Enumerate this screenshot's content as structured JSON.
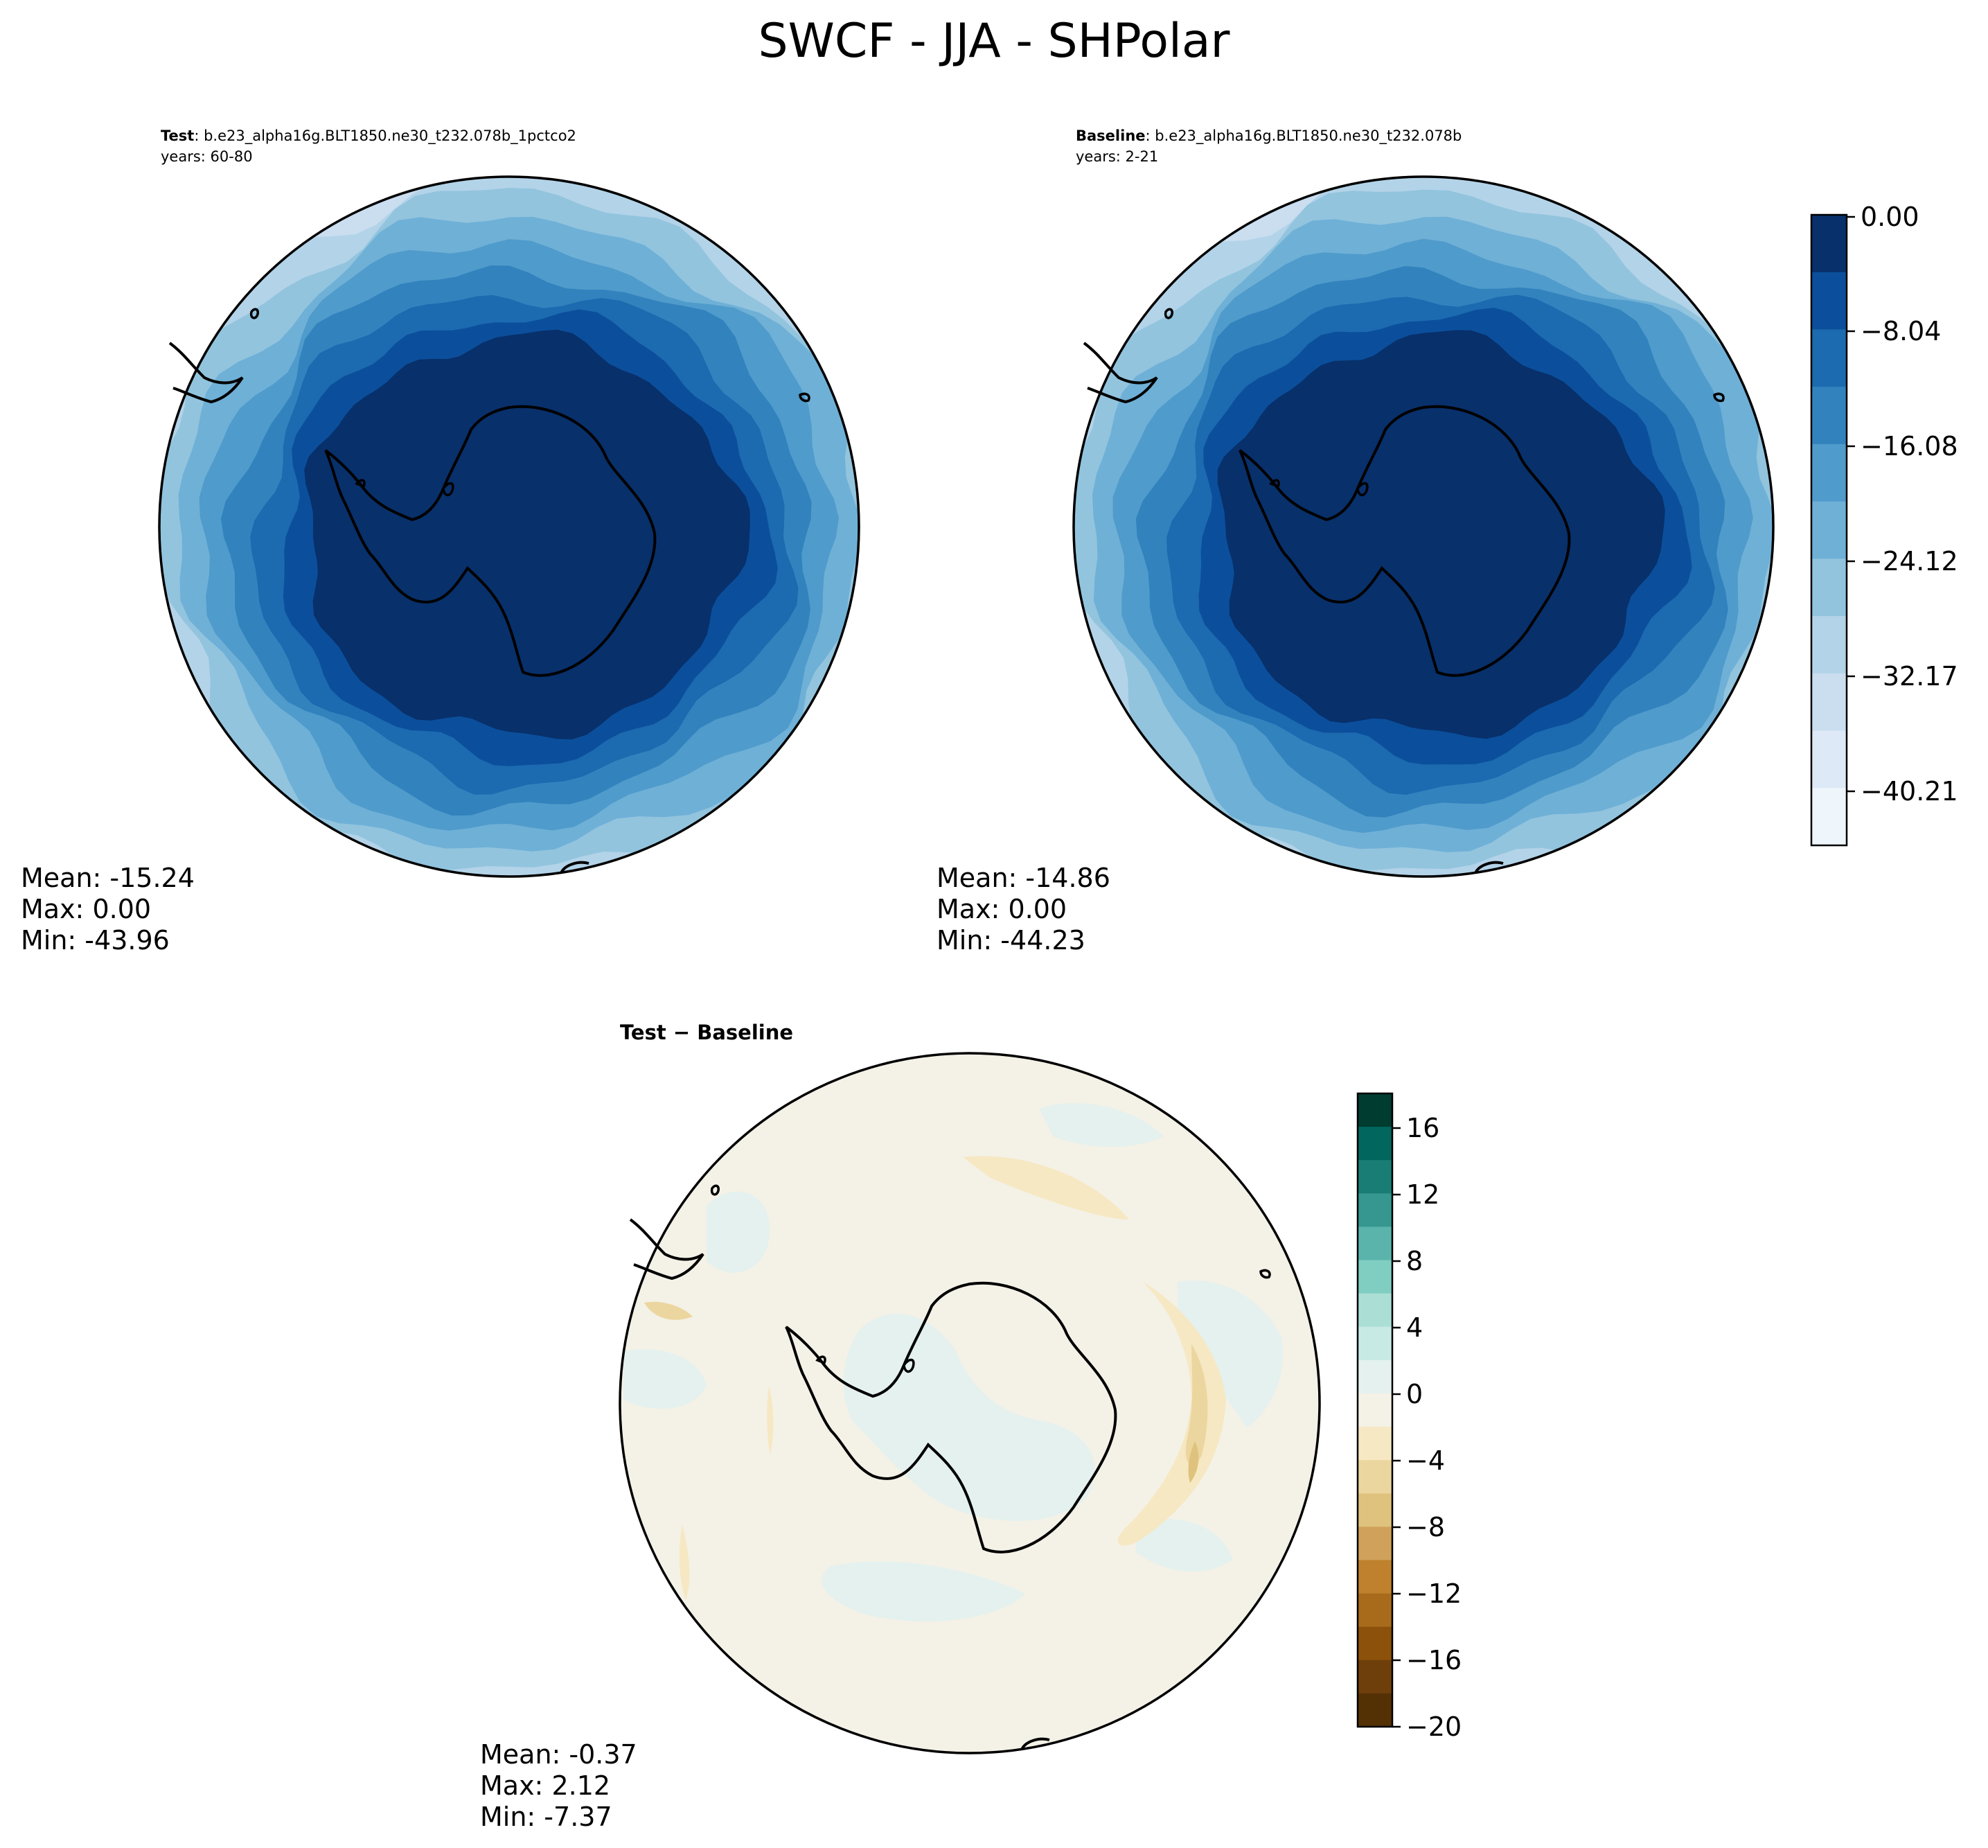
{
  "figure": {
    "title": "SWCF - JJA - SHPolar"
  },
  "panels": {
    "test": {
      "label_bold": "Test",
      "label_rest": ": b.e23_alpha16g.BLT1850.ne30_t232.078b_1pctco2",
      "years": "years: 60-80",
      "stats": {
        "mean": "Mean: -15.24",
        "max": "Max:  0.00",
        "min": "Min: -43.96"
      }
    },
    "baseline": {
      "label_bold": "Baseline",
      "label_rest": ": b.e23_alpha16g.BLT1850.ne30_t232.078b",
      "years": "years: 2-21",
      "stats": {
        "mean": "Mean: -14.86",
        "max": "Max:  0.00",
        "min": "Min: -44.23"
      }
    },
    "diff": {
      "label": "Test − Baseline",
      "stats": {
        "mean": "Mean: -0.37",
        "max": "Max:  2.12",
        "min": "Min: -7.37"
      }
    }
  },
  "colorbars": {
    "main": {
      "ticks": [
        "0.00",
        "−8.04",
        "−16.08",
        "−24.12",
        "−32.17",
        "−40.21"
      ],
      "colors": [
        "#08306b",
        "#0b4f9c",
        "#1c6aaf",
        "#3282be",
        "#4f9bcb",
        "#6fb0d7",
        "#92c4de",
        "#b3d3e8",
        "#cadef0",
        "#dde9f6",
        "#eef5fb"
      ]
    },
    "diff": {
      "ticks": [
        "16",
        "12",
        "8",
        "4",
        "0",
        "−4",
        "−8",
        "−12",
        "−16",
        "−20"
      ],
      "colors": [
        "#003c30",
        "#01665e",
        "#1a7d75",
        "#35978f",
        "#5ab4ac",
        "#80cdc1",
        "#abdfd6",
        "#c7eae5",
        "#e4f1ef",
        "#f4f1e6",
        "#f6e8c3",
        "#ecd69f",
        "#dfc27d",
        "#cfa15a",
        "#bf812d",
        "#a86b1c",
        "#8c510a",
        "#6e3f0a",
        "#543005"
      ]
    }
  }
}
